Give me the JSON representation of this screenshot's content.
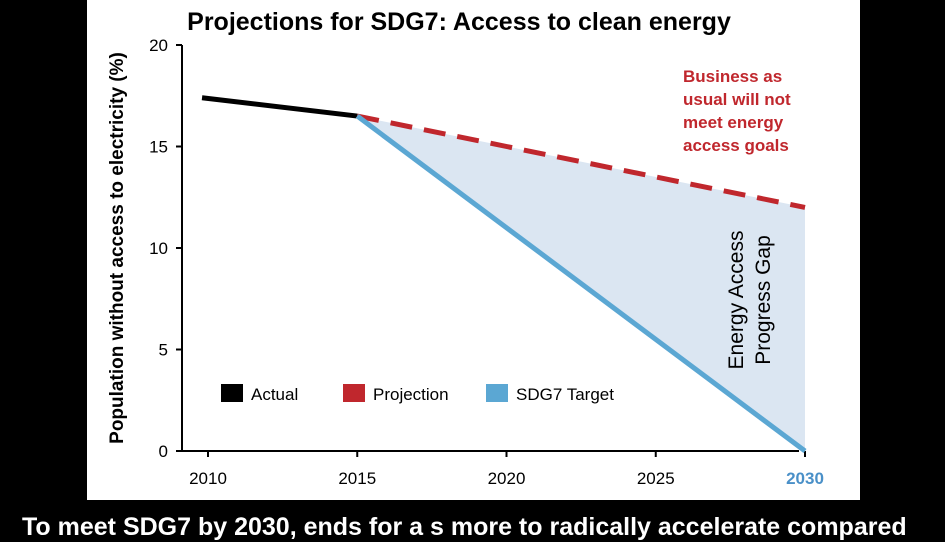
{
  "caption": "To meet SDG7 by 2030, ends for a s  more to radically accelerate compared",
  "chart_data": {
    "type": "line",
    "title": "Projections for SDG7: Access to clean energy",
    "ylabel": "Population without access to electricity (%)",
    "xlabel": "",
    "xlim": [
      2010,
      2030
    ],
    "ylim": [
      0,
      20
    ],
    "x_ticks": [
      "2010",
      "2015",
      "2020",
      "2025",
      "2030"
    ],
    "y_ticks": [
      "0",
      "5",
      "10",
      "15",
      "20"
    ],
    "highlight_tick": "2030",
    "grid": false,
    "legend_position": "lower-left",
    "series": [
      {
        "name": "Actual",
        "style": "solid",
        "color": "#000000",
        "points": [
          [
            2009.8,
            17.4
          ],
          [
            2015,
            16.5
          ]
        ]
      },
      {
        "name": "Projection",
        "style": "dashed",
        "color": "#c0272d",
        "points": [
          [
            2015,
            16.5
          ],
          [
            2030,
            12.0
          ]
        ]
      },
      {
        "name": "SDG7 Target",
        "style": "solid",
        "color": "#5ba7d3",
        "points": [
          [
            2015,
            16.5
          ],
          [
            2030,
            0.0
          ]
        ]
      }
    ],
    "shaded_region": {
      "between": [
        "Projection",
        "SDG7 Target"
      ],
      "color": "#dbe6f2"
    },
    "annotations": [
      {
        "id": "bau",
        "lines": [
          "Business as",
          "usual will not",
          "meet energy",
          "access goals"
        ],
        "color": "#c0272d"
      },
      {
        "id": "gap",
        "lines": [
          "Energy Access",
          "Progress Gap"
        ],
        "color": "#000000"
      }
    ],
    "colors": {
      "axis": "#000000",
      "highlight_tick": "#4a90c8"
    }
  }
}
